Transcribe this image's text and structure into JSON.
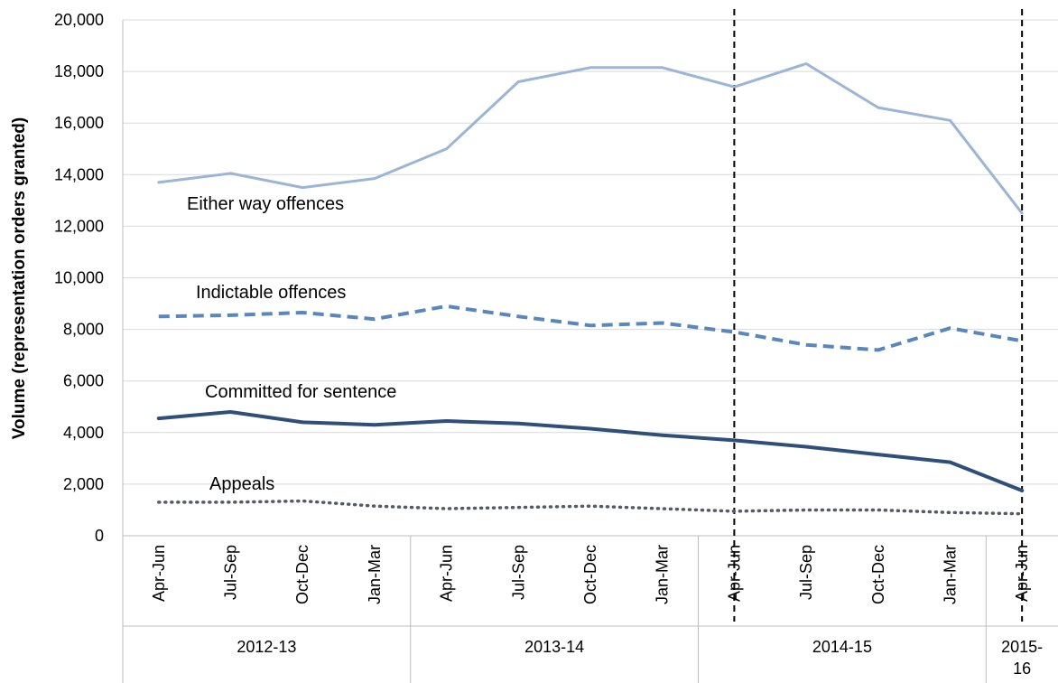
{
  "chart_data": {
    "type": "line",
    "xlabel": "",
    "ylabel": "Volume (representation orders granted)",
    "ylim": [
      0,
      20000
    ],
    "yticks": [
      "0",
      "2,000",
      "4,000",
      "6,000",
      "8,000",
      "10,000",
      "12,000",
      "14,000",
      "16,000",
      "18,000",
      "20,000"
    ],
    "grid": true,
    "categories": [
      "Apr-Jun",
      "Jul-Sep",
      "Oct-Dec",
      "Jan-Mar",
      "Apr-Jun",
      "Jul-Sep",
      "Oct-Dec",
      "Jan-Mar",
      "Apr-Jun",
      "Jul-Sep",
      "Oct-Dec",
      "Jan-Mar",
      "Apr-Jun"
    ],
    "year_groups": [
      {
        "label": "2012-13",
        "start": 0,
        "end": 3
      },
      {
        "label": "2013-14",
        "start": 4,
        "end": 7
      },
      {
        "label": "2014-15",
        "start": 8,
        "end": 11
      },
      {
        "label": "2015-16",
        "line1": "2015-",
        "line2": "16",
        "start": 12,
        "end": 12
      }
    ],
    "vertical_markers_at": [
      8,
      12
    ],
    "series": [
      {
        "name": "Either way offences",
        "color": "#9bb5d6",
        "style": "solid",
        "values": [
          13700,
          14050,
          13500,
          13850,
          15000,
          17600,
          18150,
          18150,
          17400,
          18300,
          16600,
          16100,
          12500
        ]
      },
      {
        "name": "Indictable offences",
        "color": "#5a86be",
        "style": "dashed",
        "values": [
          8500,
          8550,
          8650,
          8400,
          8900,
          8500,
          8150,
          8250,
          7900,
          7400,
          7200,
          8050,
          7550
        ]
      },
      {
        "name": "Committed for sentence",
        "color": "#2f4f7a",
        "style": "solid",
        "values": [
          4550,
          4800,
          4400,
          4300,
          4450,
          4350,
          4150,
          3900,
          3700,
          3450,
          3150,
          2850,
          1750
        ]
      },
      {
        "name": "Appeals",
        "color": "#555a66",
        "style": "dotted",
        "values": [
          1300,
          1300,
          1350,
          1150,
          1050,
          1100,
          1150,
          1050,
          950,
          1000,
          1000,
          900,
          850
        ]
      }
    ]
  }
}
